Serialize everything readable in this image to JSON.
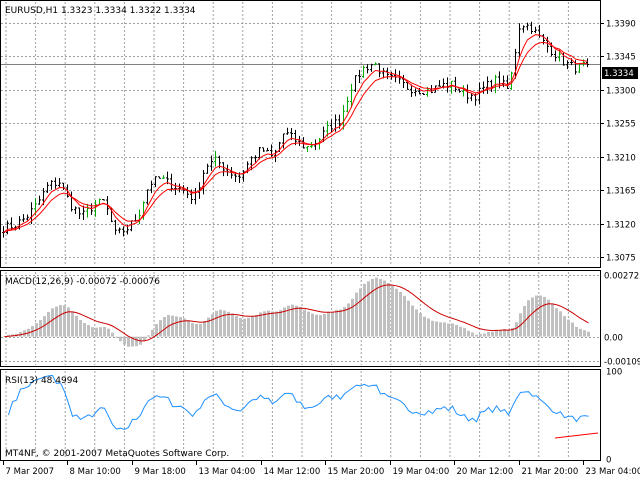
{
  "chart_data": [
    {
      "type": "ohlc",
      "panel": "price",
      "info_text": "EURUSD,H1  1.3323 1.3334 1.3322 1.3334",
      "symbol": "EURUSD",
      "timeframe": "H1",
      "last_bar": {
        "open": 1.3323,
        "high": 1.3334,
        "low": 1.3322,
        "close": 1.3334
      },
      "current_price_label": "1.3334",
      "ylim": [
        1.3063,
        1.3418
      ],
      "y_ticks": [
        "1.3390",
        "1.3345",
        "1.3300",
        "1.3255",
        "1.3210",
        "1.3165",
        "1.3120",
        "1.3075"
      ],
      "x_ticks": [
        "7 Mar 2007",
        "8 Mar 10:00",
        "9 Mar 18:00",
        "13 Mar 04:00",
        "14 Mar 12:00",
        "15 Mar 20:00",
        "19 Mar 04:00",
        "20 Mar 12:00",
        "21 Mar 20:00",
        "23 Mar 04:00"
      ],
      "grid": true,
      "colors": {
        "bars": "#000000",
        "up_bars": "#00aa00",
        "moving_averages": "#ff0000",
        "grid": "#a0a0a0",
        "background": "#ffffff"
      },
      "close_anchors": [
        1.3114,
        1.3118,
        1.3128,
        1.3146,
        1.3172,
        1.3176,
        1.3145,
        1.313,
        1.3144,
        1.315,
        1.3105,
        1.3113,
        1.313,
        1.3174,
        1.3181,
        1.3172,
        1.3165,
        1.3153,
        1.3198,
        1.3205,
        1.319,
        1.3183,
        1.3206,
        1.322,
        1.3208,
        1.3243,
        1.3232,
        1.3222,
        1.3232,
        1.325,
        1.326,
        1.3305,
        1.3328,
        1.3336,
        1.3317,
        1.3312,
        1.3303,
        1.33,
        1.3299,
        1.3306,
        1.3307,
        1.3294,
        1.3292,
        1.3305,
        1.3314,
        1.3299,
        1.339,
        1.3384,
        1.3365,
        1.335,
        1.3336,
        1.3329,
        1.3334
      ]
    },
    {
      "type": "histogram_line",
      "panel": "macd",
      "label": "MACD(12,26,9) -0.00072 -0.00076",
      "name": "MACD",
      "params": "12,26,9",
      "values": [
        -0.00072,
        -0.00076
      ],
      "y_ticks": [
        "0.00272",
        "0.00",
        "-0.00109"
      ],
      "ylim": [
        -0.00125,
        0.00285
      ],
      "colors": {
        "histogram": "#c0c0c0",
        "signal": "#cc0000"
      }
    },
    {
      "type": "line",
      "panel": "rsi",
      "label": "RSI(13) 48.4994",
      "name": "RSI",
      "params": "13",
      "value": 48.4994,
      "y_ticks": [
        "100",
        "0"
      ],
      "ylim": [
        0,
        100
      ],
      "colors": {
        "line": "#1e90ff",
        "trendline": "#ff0000"
      }
    }
  ],
  "watermark": "MT4NF, © 2001-2007 MetaQuotes Software Corp."
}
